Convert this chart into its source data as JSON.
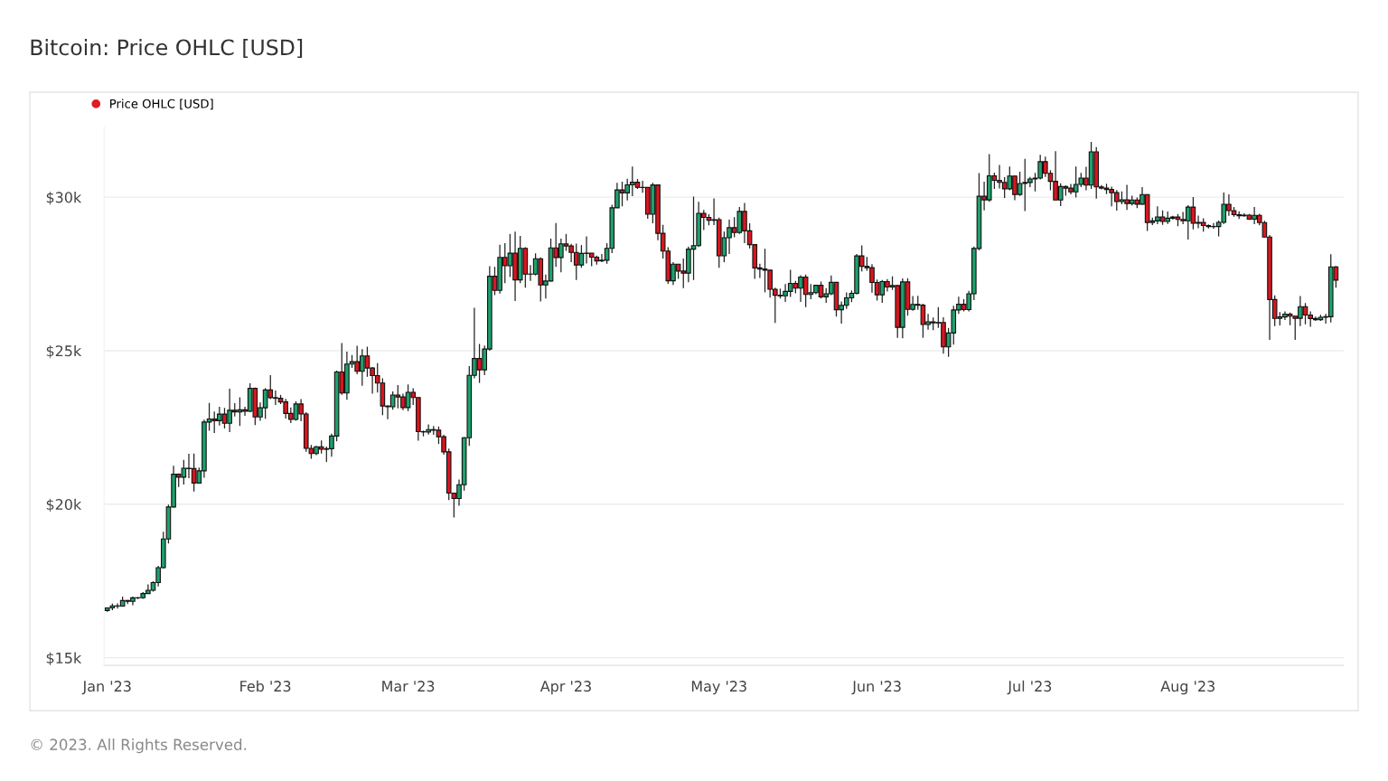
{
  "chart_data": {
    "type": "candlestick",
    "title": "Bitcoin: Price OHLC [USD]",
    "annotations": [
      "© 2023. All Rights Reserved."
    ],
    "xlim": [
      "2022-12-31T09:00",
      "2023-08-31T12:00"
    ],
    "xticks": [
      {
        "value": "2023-01-01",
        "label": "Jan '23"
      },
      {
        "value": "2023-02-01",
        "label": "Feb '23"
      },
      {
        "value": "2023-03-01",
        "label": "Mar '23"
      },
      {
        "value": "2023-04-01",
        "label": "Apr '23"
      },
      {
        "value": "2023-05-01",
        "label": "May '23"
      },
      {
        "value": "2023-06-01",
        "label": "Jun '23"
      },
      {
        "value": "2023-07-01",
        "label": "Jul '23"
      },
      {
        "value": "2023-08-01",
        "label": "Aug '23"
      }
    ],
    "ylim": [
      14750,
      32300
    ],
    "yticks": [
      {
        "value": 15000,
        "label": "$15k"
      },
      {
        "value": 20000,
        "label": "$20k"
      },
      {
        "value": 25000,
        "label": "$25k"
      },
      {
        "value": 30000,
        "label": "$30k"
      }
    ],
    "grid": "y",
    "legend": "top left",
    "marker": "circle",
    "series": [
      {
        "name": "Price OHLC [USD]",
        "color": "#e01b24",
        "x": [
          "2023-01-01",
          "2023-01-02",
          "2023-01-03",
          "2023-01-04",
          "2023-01-05",
          "2023-01-06",
          "2023-01-07",
          "2023-01-08",
          "2023-01-09",
          "2023-01-10",
          "2023-01-11",
          "2023-01-12",
          "2023-01-13",
          "2023-01-14",
          "2023-01-15",
          "2023-01-16",
          "2023-01-17",
          "2023-01-18",
          "2023-01-19",
          "2023-01-20",
          "2023-01-21",
          "2023-01-22",
          "2023-01-23",
          "2023-01-24",
          "2023-01-25",
          "2023-01-26",
          "2023-01-27",
          "2023-01-28",
          "2023-01-29",
          "2023-01-30",
          "2023-01-31",
          "2023-02-01",
          "2023-02-02",
          "2023-02-03",
          "2023-02-04",
          "2023-02-05",
          "2023-02-06",
          "2023-02-07",
          "2023-02-08",
          "2023-02-09",
          "2023-02-10",
          "2023-02-11",
          "2023-02-12",
          "2023-02-13",
          "2023-02-14",
          "2023-02-15",
          "2023-02-16",
          "2023-02-17",
          "2023-02-18",
          "2023-02-19",
          "2023-02-20",
          "2023-02-21",
          "2023-02-22",
          "2023-02-23",
          "2023-02-24",
          "2023-02-25",
          "2023-02-26",
          "2023-02-27",
          "2023-02-28",
          "2023-03-01",
          "2023-03-02",
          "2023-03-03",
          "2023-03-04",
          "2023-03-05",
          "2023-03-06",
          "2023-03-07",
          "2023-03-08",
          "2023-03-09",
          "2023-03-10",
          "2023-03-11",
          "2023-03-12",
          "2023-03-13",
          "2023-03-14",
          "2023-03-15",
          "2023-03-16",
          "2023-03-17",
          "2023-03-18",
          "2023-03-19",
          "2023-03-20",
          "2023-03-21",
          "2023-03-22",
          "2023-03-23",
          "2023-03-24",
          "2023-03-25",
          "2023-03-26",
          "2023-03-27",
          "2023-03-28",
          "2023-03-29",
          "2023-03-30",
          "2023-03-31",
          "2023-04-01",
          "2023-04-02",
          "2023-04-03",
          "2023-04-04",
          "2023-04-05",
          "2023-04-06",
          "2023-04-07",
          "2023-04-08",
          "2023-04-09",
          "2023-04-10",
          "2023-04-11",
          "2023-04-12",
          "2023-04-13",
          "2023-04-14",
          "2023-04-15",
          "2023-04-16",
          "2023-04-17",
          "2023-04-18",
          "2023-04-19",
          "2023-04-20",
          "2023-04-21",
          "2023-04-22",
          "2023-04-23",
          "2023-04-24",
          "2023-04-25",
          "2023-04-26",
          "2023-04-27",
          "2023-04-28",
          "2023-04-29",
          "2023-04-30",
          "2023-05-01",
          "2023-05-02",
          "2023-05-03",
          "2023-05-04",
          "2023-05-05",
          "2023-05-06",
          "2023-05-07",
          "2023-05-08",
          "2023-05-09",
          "2023-05-10",
          "2023-05-11",
          "2023-05-12",
          "2023-05-13",
          "2023-05-14",
          "2023-05-15",
          "2023-05-16",
          "2023-05-17",
          "2023-05-18",
          "2023-05-19",
          "2023-05-20",
          "2023-05-21",
          "2023-05-22",
          "2023-05-23",
          "2023-05-24",
          "2023-05-25",
          "2023-05-26",
          "2023-05-27",
          "2023-05-28",
          "2023-05-29",
          "2023-05-30",
          "2023-05-31",
          "2023-06-01",
          "2023-06-02",
          "2023-06-03",
          "2023-06-04",
          "2023-06-05",
          "2023-06-06",
          "2023-06-07",
          "2023-06-08",
          "2023-06-09",
          "2023-06-10",
          "2023-06-11",
          "2023-06-12",
          "2023-06-13",
          "2023-06-14",
          "2023-06-15",
          "2023-06-16",
          "2023-06-17",
          "2023-06-18",
          "2023-06-19",
          "2023-06-20",
          "2023-06-21",
          "2023-06-22",
          "2023-06-23",
          "2023-06-24",
          "2023-06-25",
          "2023-06-26",
          "2023-06-27",
          "2023-06-28",
          "2023-06-29",
          "2023-06-30",
          "2023-07-01",
          "2023-07-02",
          "2023-07-03",
          "2023-07-04",
          "2023-07-05",
          "2023-07-06",
          "2023-07-07",
          "2023-07-08",
          "2023-07-09",
          "2023-07-10",
          "2023-07-11",
          "2023-07-12",
          "2023-07-13",
          "2023-07-14",
          "2023-07-15",
          "2023-07-16",
          "2023-07-17",
          "2023-07-18",
          "2023-07-19",
          "2023-07-20",
          "2023-07-21",
          "2023-07-22",
          "2023-07-23",
          "2023-07-24",
          "2023-07-25",
          "2023-07-26",
          "2023-07-27",
          "2023-07-28",
          "2023-07-29",
          "2023-07-30",
          "2023-07-31",
          "2023-08-01",
          "2023-08-02",
          "2023-08-03",
          "2023-08-04",
          "2023-08-05",
          "2023-08-06",
          "2023-08-07",
          "2023-08-08",
          "2023-08-09",
          "2023-08-10",
          "2023-08-11",
          "2023-08-12",
          "2023-08-13",
          "2023-08-14",
          "2023-08-15",
          "2023-08-16",
          "2023-08-17",
          "2023-08-18",
          "2023-08-19",
          "2023-08-20",
          "2023-08-21",
          "2023-08-22",
          "2023-08-23",
          "2023-08-24",
          "2023-08-25",
          "2023-08-26",
          "2023-08-27",
          "2023-08-28",
          "2023-08-29",
          "2023-08-30"
        ],
        "colors": [
          "#1fa06d",
          "#1fa06d",
          "#d9161f",
          "#1fa06d",
          "#d9161f",
          "#1fa06d",
          "#1fa06d",
          "#1fa06d",
          "#1fa06d",
          "#1fa06d",
          "#1fa06d",
          "#1fa06d",
          "#1fa06d",
          "#1fa06d",
          "#d9161f",
          "#1fa06d",
          "#d9161f",
          "#d9161f",
          "#1fa06d",
          "#1fa06d",
          "#1fa06d",
          "#d9161f",
          "#1fa06d",
          "#d9161f",
          "#1fa06d",
          "#d9161f",
          "#1fa06d",
          "#d9161f",
          "#1fa06d",
          "#d9161f",
          "#1fa06d",
          "#1fa06d",
          "#d9161f",
          "#d9161f",
          "#d9161f",
          "#d9161f",
          "#d9161f",
          "#1fa06d",
          "#d9161f",
          "#d9161f",
          "#d9161f",
          "#1fa06d",
          "#d9161f",
          "#1fa06d",
          "#1fa06d",
          "#1fa06d",
          "#d9161f",
          "#1fa06d",
          "#1fa06d",
          "#d9161f",
          "#1fa06d",
          "#d9161f",
          "#d9161f",
          "#d9161f",
          "#d9161f",
          "#d9161f",
          "#1fa06d",
          "#d9161f",
          "#d9161f",
          "#1fa06d",
          "#d9161f",
          "#d9161f",
          "#d9161f",
          "#1fa06d",
          "#d9161f",
          "#d9161f",
          "#d9161f",
          "#d9161f",
          "#d9161f",
          "#1fa06d",
          "#1fa06d",
          "#1fa06d",
          "#1fa06d",
          "#d9161f",
          "#1fa06d",
          "#1fa06d",
          "#d9161f",
          "#1fa06d",
          "#d9161f",
          "#1fa06d",
          "#d9161f",
          "#1fa06d",
          "#d9161f",
          "#1fa06d",
          "#1fa06d",
          "#d9161f",
          "#1fa06d",
          "#1fa06d",
          "#d9161f",
          "#1fa06d",
          "#d9161f",
          "#d9161f",
          "#d9161f",
          "#1fa06d",
          "#1fa06d",
          "#d9161f",
          "#d9161f",
          "#1fa06d",
          "#1fa06d",
          "#1fa06d",
          "#1fa06d",
          "#d9161f",
          "#1fa06d",
          "#1fa06d",
          "#d9161f",
          "#d9161f",
          "#d9161f",
          "#1fa06d",
          "#d9161f",
          "#d9161f",
          "#d9161f",
          "#1fa06d",
          "#d9161f",
          "#d9161f",
          "#1fa06d",
          "#1fa06d",
          "#1fa06d",
          "#d9161f",
          "#d9161f",
          "#1fa06d",
          "#d9161f",
          "#1fa06d",
          "#1fa06d",
          "#d9161f",
          "#1fa06d",
          "#d9161f",
          "#d9161f",
          "#d9161f",
          "#d9161f",
          "#d9161f",
          "#d9161f",
          "#d9161f",
          "#d9161f",
          "#1fa06d",
          "#1fa06d",
          "#d9161f",
          "#1fa06d",
          "#d9161f",
          "#1fa06d",
          "#1fa06d",
          "#d9161f",
          "#1fa06d",
          "#1fa06d",
          "#d9161f",
          "#1fa06d",
          "#1fa06d",
          "#1fa06d",
          "#1fa06d",
          "#d9161f",
          "#d9161f",
          "#d9161f",
          "#d9161f",
          "#1fa06d",
          "#d9161f",
          "#1fa06d",
          "#d9161f",
          "#1fa06d",
          "#d9161f",
          "#1fa06d",
          "#d9161f",
          "#d9161f",
          "#1fa06d",
          "#d9161f",
          "#1fa06d",
          "#d9161f",
          "#1fa06d",
          "#1fa06d",
          "#1fa06d",
          "#d9161f",
          "#1fa06d",
          "#1fa06d",
          "#1fa06d",
          "#d9161f",
          "#1fa06d",
          "#d9161f",
          "#d9161f",
          "#d9161f",
          "#1fa06d",
          "#d9161f",
          "#1fa06d",
          "#1fa06d",
          "#1fa06d",
          "#1fa06d",
          "#1fa06d",
          "#d9161f",
          "#d9161f",
          "#d9161f",
          "#1fa06d",
          "#d9161f",
          "#d9161f",
          "#1fa06d",
          "#1fa06d",
          "#d9161f",
          "#1fa06d",
          "#d9161f",
          "#d9161f",
          "#d9161f",
          "#d9161f",
          "#d9161f",
          "#1fa06d",
          "#d9161f",
          "#1fa06d",
          "#d9161f",
          "#1fa06d",
          "#d9161f",
          "#1fa06d",
          "#1fa06d",
          "#d9161f",
          "#1fa06d",
          "#1fa06d",
          "#d9161f",
          "#d9161f",
          "#1fa06d",
          "#d9161f",
          "#1fa06d",
          "#d9161f",
          "#d9161f",
          "#d9161f",
          "#1fa06d",
          "#1fa06d",
          "#d9161f",
          "#d9161f",
          "#d9161f",
          "#1fa06d",
          "#d9161f",
          "#1fa06d",
          "#d9161f",
          "#d9161f",
          "#d9161f",
          "#d9161f",
          "#1fa06d",
          "#1fa06d",
          "#d9161f",
          "#d9161f",
          "#1fa06d",
          "#d9161f",
          "#d9161f",
          "#d9161f",
          "#1fa06d",
          "#1fa06d",
          "#1fa06d",
          "#d9161f"
        ],
        "ohlc": [
          [
            16540,
            16630,
            16500,
            16625
          ],
          [
            16625,
            16760,
            16550,
            16688
          ],
          [
            16688,
            16770,
            16600,
            16680
          ],
          [
            16680,
            16990,
            16660,
            16863
          ],
          [
            16863,
            16880,
            16750,
            16836
          ],
          [
            16836,
            16990,
            16710,
            16951
          ],
          [
            16951,
            16980,
            16910,
            16955
          ],
          [
            16955,
            17140,
            16920,
            17091
          ],
          [
            17091,
            17390,
            17090,
            17196
          ],
          [
            17196,
            17490,
            17150,
            17446
          ],
          [
            17446,
            17990,
            17320,
            17934
          ],
          [
            17934,
            19100,
            17900,
            18869
          ],
          [
            18869,
            19990,
            18720,
            19910
          ],
          [
            19910,
            21250,
            19890,
            20977
          ],
          [
            20977,
            21000,
            20560,
            20880
          ],
          [
            20880,
            21440,
            20640,
            21170
          ],
          [
            21170,
            21640,
            20850,
            21161
          ],
          [
            21161,
            21650,
            20410,
            20688
          ],
          [
            20688,
            21190,
            20670,
            21086
          ],
          [
            21086,
            22750,
            20860,
            22676
          ],
          [
            22676,
            23300,
            22390,
            22777
          ],
          [
            22777,
            23020,
            22320,
            22720
          ],
          [
            22720,
            23170,
            22560,
            22934
          ],
          [
            22934,
            23140,
            22470,
            22637
          ],
          [
            22637,
            23760,
            22350,
            23060
          ],
          [
            23060,
            23290,
            22860,
            23009
          ],
          [
            23009,
            23480,
            22550,
            23074
          ],
          [
            23074,
            23170,
            22880,
            23027
          ],
          [
            23027,
            23940,
            23000,
            23774
          ],
          [
            23774,
            23800,
            22580,
            22840
          ],
          [
            22840,
            23310,
            22720,
            23139
          ],
          [
            23139,
            23780,
            22780,
            23723
          ],
          [
            23723,
            24200,
            23420,
            23471
          ],
          [
            23471,
            23700,
            23230,
            23449
          ],
          [
            23449,
            23560,
            23260,
            23331
          ],
          [
            23331,
            23430,
            22790,
            22955
          ],
          [
            22955,
            23150,
            22640,
            22760
          ],
          [
            22760,
            23350,
            22720,
            23264
          ],
          [
            23264,
            23420,
            22700,
            22939
          ],
          [
            22939,
            23000,
            21710,
            21819
          ],
          [
            21819,
            21930,
            21480,
            21651
          ],
          [
            21651,
            21900,
            21600,
            21870
          ],
          [
            21870,
            22080,
            21650,
            21788
          ],
          [
            21788,
            21880,
            21380,
            21808
          ],
          [
            21808,
            22300,
            21550,
            22220
          ],
          [
            22220,
            24350,
            22050,
            24307
          ],
          [
            24307,
            25250,
            23560,
            23623
          ],
          [
            23623,
            24970,
            23400,
            24565
          ],
          [
            24565,
            24860,
            24440,
            24641
          ],
          [
            24641,
            25160,
            24230,
            24327
          ],
          [
            24327,
            25050,
            23860,
            24829
          ],
          [
            24829,
            25130,
            24150,
            24436
          ],
          [
            24436,
            24470,
            23600,
            24188
          ],
          [
            24188,
            24590,
            23640,
            23947
          ],
          [
            23947,
            24100,
            22900,
            23198
          ],
          [
            23198,
            23220,
            22770,
            23175
          ],
          [
            23175,
            23670,
            23080,
            23554
          ],
          [
            23554,
            23880,
            23120,
            23492
          ],
          [
            23492,
            23600,
            23060,
            23147
          ],
          [
            23147,
            23900,
            23030,
            23646
          ],
          [
            23646,
            23780,
            23230,
            23475
          ],
          [
            23475,
            23480,
            22070,
            22362
          ],
          [
            22362,
            22400,
            22210,
            22354
          ],
          [
            22354,
            22600,
            22270,
            22430
          ],
          [
            22430,
            22550,
            22260,
            22410
          ],
          [
            22410,
            22530,
            21960,
            22197
          ],
          [
            22197,
            22260,
            21610,
            21705
          ],
          [
            21705,
            21810,
            20130,
            20363
          ],
          [
            20363,
            20370,
            19570,
            20187
          ],
          [
            20187,
            20800,
            19950,
            20633
          ],
          [
            20633,
            22190,
            20440,
            22163
          ],
          [
            22163,
            24500,
            21900,
            24197
          ],
          [
            24197,
            26400,
            24100,
            24746
          ],
          [
            24746,
            25220,
            23950,
            24375
          ],
          [
            24375,
            25170,
            24200,
            25052
          ],
          [
            25052,
            27750,
            25000,
            27423
          ],
          [
            27423,
            27730,
            26810,
            26965
          ],
          [
            26965,
            28450,
            26860,
            28038
          ],
          [
            28038,
            28500,
            27200,
            27767
          ],
          [
            27767,
            28800,
            27400,
            28175
          ],
          [
            28175,
            28880,
            26620,
            27307
          ],
          [
            27307,
            28740,
            27200,
            28333
          ],
          [
            28333,
            28370,
            27050,
            27493
          ],
          [
            27493,
            27790,
            27270,
            27494
          ],
          [
            27494,
            28170,
            27450,
            27994
          ],
          [
            27994,
            28040,
            26600,
            27139
          ],
          [
            27139,
            27480,
            26700,
            27268
          ],
          [
            27268,
            28650,
            27250,
            28348
          ],
          [
            28348,
            29160,
            27730,
            28033
          ],
          [
            28033,
            28650,
            27550,
            28478
          ],
          [
            28478,
            28800,
            28250,
            28411
          ],
          [
            28411,
            28480,
            27880,
            28199
          ],
          [
            28199,
            28490,
            27300,
            27790
          ],
          [
            27790,
            28440,
            27700,
            28168
          ],
          [
            28168,
            28720,
            27840,
            28177
          ],
          [
            28177,
            28180,
            27750,
            28044
          ],
          [
            28044,
            28100,
            27800,
            27925
          ],
          [
            27925,
            28150,
            27880,
            27947
          ],
          [
            27947,
            28500,
            27830,
            28333
          ],
          [
            28333,
            29750,
            28180,
            29653
          ],
          [
            29653,
            30470,
            29650,
            30235
          ],
          [
            30235,
            30500,
            29700,
            30139
          ],
          [
            30139,
            30600,
            29890,
            30399
          ],
          [
            30399,
            31000,
            30030,
            30485
          ],
          [
            30485,
            30590,
            30270,
            30318
          ],
          [
            30318,
            30530,
            30140,
            30315
          ],
          [
            30315,
            30320,
            29300,
            29445
          ],
          [
            29445,
            30470,
            29150,
            30397
          ],
          [
            30397,
            30400,
            28600,
            28822
          ],
          [
            28822,
            29100,
            28000,
            28245
          ],
          [
            28245,
            28370,
            27180,
            27276
          ],
          [
            27276,
            27880,
            27140,
            27817
          ],
          [
            27817,
            27820,
            27340,
            27591
          ],
          [
            27591,
            28000,
            27040,
            27525
          ],
          [
            27525,
            28390,
            27230,
            28307
          ],
          [
            28307,
            30020,
            27300,
            28422
          ],
          [
            28422,
            29850,
            28380,
            29473
          ],
          [
            29473,
            29580,
            28930,
            29340
          ],
          [
            29340,
            29440,
            29080,
            29248
          ],
          [
            29248,
            29960,
            29090,
            29268
          ],
          [
            29268,
            29330,
            27700,
            28091
          ],
          [
            28091,
            28880,
            27880,
            28680
          ],
          [
            28680,
            29270,
            28150,
            29006
          ],
          [
            29006,
            29350,
            28690,
            28847
          ],
          [
            28847,
            29680,
            28800,
            29534
          ],
          [
            29534,
            29810,
            28500,
            28904
          ],
          [
            28904,
            29150,
            28330,
            28454
          ],
          [
            28454,
            28470,
            27340,
            27694
          ],
          [
            27694,
            27830,
            27370,
            27658
          ],
          [
            27658,
            28320,
            26900,
            27621
          ],
          [
            27621,
            27630,
            26730,
            27000
          ],
          [
            27000,
            27050,
            25900,
            26805
          ],
          [
            26805,
            27020,
            26700,
            26785
          ],
          [
            26785,
            27170,
            26590,
            26931
          ],
          [
            26931,
            27630,
            26750,
            27193
          ],
          [
            27193,
            27270,
            26870,
            27036
          ],
          [
            27036,
            27460,
            26590,
            27399
          ],
          [
            27399,
            27480,
            26420,
            26832
          ],
          [
            26832,
            27170,
            26680,
            26890
          ],
          [
            26890,
            27150,
            26840,
            27130
          ],
          [
            27130,
            27250,
            26700,
            26753
          ],
          [
            26753,
            27040,
            26560,
            26852
          ],
          [
            26852,
            27450,
            26810,
            27225
          ],
          [
            27225,
            27240,
            26110,
            26334
          ],
          [
            26334,
            26600,
            25880,
            26476
          ],
          [
            26476,
            26900,
            26360,
            26720
          ],
          [
            26720,
            26960,
            26580,
            26868
          ],
          [
            26868,
            28150,
            26830,
            28086
          ],
          [
            28086,
            28430,
            27580,
            27746
          ],
          [
            27746,
            28050,
            27600,
            27702
          ],
          [
            27702,
            27820,
            26890,
            27220
          ],
          [
            27220,
            27320,
            26630,
            26819
          ],
          [
            26819,
            27300,
            26560,
            27250
          ],
          [
            27250,
            27330,
            26930,
            27075
          ],
          [
            27075,
            27420,
            26980,
            27120
          ],
          [
            27120,
            27140,
            25420,
            25760
          ],
          [
            25760,
            27350,
            25400,
            27238
          ],
          [
            27238,
            27360,
            26140,
            26346
          ],
          [
            26346,
            26780,
            26300,
            26508
          ],
          [
            26508,
            26790,
            26330,
            26480
          ],
          [
            26480,
            26530,
            25420,
            25851
          ],
          [
            25851,
            26200,
            25680,
            25940
          ],
          [
            25940,
            26080,
            25670,
            25902
          ],
          [
            25902,
            26420,
            25740,
            25918
          ],
          [
            25918,
            26090,
            24900,
            25124
          ],
          [
            25124,
            25740,
            24800,
            25576
          ],
          [
            25576,
            26460,
            25200,
            26327
          ],
          [
            26327,
            26760,
            26200,
            26511
          ],
          [
            26511,
            26680,
            26280,
            26336
          ],
          [
            26336,
            26950,
            26280,
            26851
          ],
          [
            26851,
            28390,
            26650,
            28327
          ],
          [
            28327,
            30780,
            28270,
            30027
          ],
          [
            30027,
            30500,
            29570,
            29912
          ],
          [
            29912,
            31400,
            29850,
            30695
          ],
          [
            30695,
            30800,
            30270,
            30549
          ],
          [
            30549,
            31050,
            30280,
            30480
          ],
          [
            30480,
            30650,
            29970,
            30271
          ],
          [
            30271,
            31000,
            30220,
            30689
          ],
          [
            30689,
            30700,
            29900,
            30086
          ],
          [
            30086,
            30830,
            30040,
            30445
          ],
          [
            30445,
            31250,
            29550,
            30477
          ],
          [
            30477,
            30660,
            30330,
            30590
          ],
          [
            30590,
            30790,
            30190,
            30620
          ],
          [
            30620,
            31380,
            30580,
            31156
          ],
          [
            31156,
            31320,
            30660,
            30777
          ],
          [
            30777,
            30880,
            30220,
            30514
          ],
          [
            30514,
            31500,
            29900,
            29909
          ],
          [
            29909,
            30450,
            29710,
            30346
          ],
          [
            30346,
            30380,
            30050,
            30292
          ],
          [
            30292,
            30430,
            30090,
            30171
          ],
          [
            30171,
            31000,
            29990,
            30414
          ],
          [
            30414,
            30790,
            30330,
            30620
          ],
          [
            30620,
            30990,
            30220,
            30391
          ],
          [
            30391,
            31800,
            30270,
            31476
          ],
          [
            31476,
            31630,
            29950,
            30335
          ],
          [
            30335,
            30390,
            30250,
            30295
          ],
          [
            30295,
            30440,
            30100,
            30249
          ],
          [
            30249,
            30340,
            29700,
            30145
          ],
          [
            30145,
            30230,
            29560,
            29856
          ],
          [
            29856,
            30190,
            29770,
            29913
          ],
          [
            29913,
            30400,
            29580,
            29792
          ],
          [
            29792,
            30050,
            29730,
            29908
          ],
          [
            29908,
            29990,
            29640,
            29771
          ],
          [
            29771,
            30330,
            29750,
            30084
          ],
          [
            30084,
            30100,
            28900,
            29176
          ],
          [
            29176,
            29330,
            29090,
            29227
          ],
          [
            29227,
            29700,
            29120,
            29354
          ],
          [
            29354,
            29570,
            29100,
            29210
          ],
          [
            29210,
            29530,
            29130,
            29316
          ],
          [
            29316,
            29390,
            29270,
            29352
          ],
          [
            29352,
            29450,
            29050,
            29275
          ],
          [
            29275,
            29520,
            29120,
            29230
          ],
          [
            29230,
            29740,
            28620,
            29676
          ],
          [
            29676,
            30000,
            28950,
            29151
          ],
          [
            29151,
            29400,
            28990,
            29178
          ],
          [
            29178,
            29310,
            28880,
            29074
          ],
          [
            29074,
            29110,
            28980,
            29042
          ],
          [
            29042,
            29160,
            28970,
            29041
          ],
          [
            29041,
            29240,
            28720,
            29180
          ],
          [
            29180,
            30150,
            29130,
            29766
          ],
          [
            29766,
            30090,
            29390,
            29561
          ],
          [
            29561,
            29680,
            29360,
            29429
          ],
          [
            29429,
            29540,
            29290,
            29397
          ],
          [
            29397,
            29470,
            29360,
            29415
          ],
          [
            29415,
            29450,
            29260,
            29283
          ],
          [
            29283,
            29680,
            29120,
            29408
          ],
          [
            29408,
            29460,
            29080,
            29170
          ],
          [
            29170,
            29230,
            28700,
            28701
          ],
          [
            28701,
            28770,
            25350,
            26664
          ],
          [
            26664,
            26800,
            25800,
            26049
          ],
          [
            26049,
            26260,
            25820,
            26097
          ],
          [
            26097,
            26280,
            26000,
            26189
          ],
          [
            26189,
            26240,
            25830,
            26125
          ],
          [
            26125,
            26130,
            25350,
            26056
          ],
          [
            26056,
            26780,
            25800,
            26432
          ],
          [
            26432,
            26550,
            25860,
            26163
          ],
          [
            26163,
            26280,
            25780,
            26048
          ],
          [
            26048,
            26110,
            25970,
            26009
          ],
          [
            26009,
            26170,
            25970,
            26089
          ],
          [
            26089,
            26200,
            25880,
            26107
          ],
          [
            26107,
            28140,
            25920,
            27728
          ],
          [
            27728,
            27760,
            27050,
            27298
          ]
        ]
      }
    ]
  }
}
